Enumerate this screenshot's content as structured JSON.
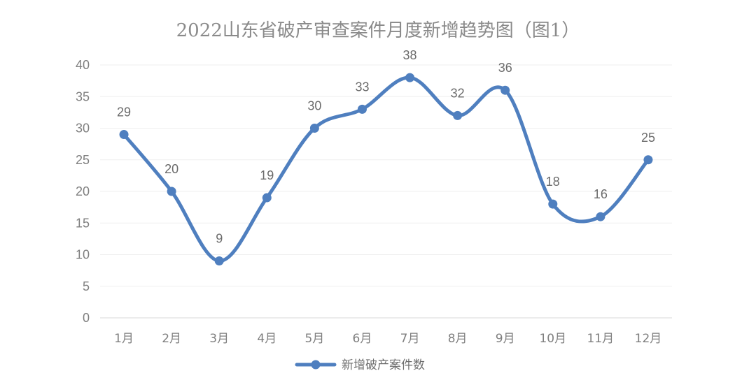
{
  "chart_data": {
    "type": "line",
    "title": "2022山东省破产审查案件月度新增趋势图（图1）",
    "categories": [
      "1月",
      "2月",
      "3月",
      "4月",
      "5月",
      "6月",
      "7月",
      "8月",
      "9月",
      "10月",
      "11月",
      "12月"
    ],
    "series": [
      {
        "name": "新增破产案件数",
        "values": [
          29,
          20,
          9,
          19,
          30,
          33,
          38,
          32,
          36,
          18,
          16,
          25
        ],
        "color": "#4f7fbf"
      }
    ],
    "ylim": [
      0,
      40
    ],
    "yticks": [
      0,
      5,
      10,
      15,
      20,
      25,
      30,
      35,
      40
    ],
    "grid": true,
    "smooth": true,
    "data_labels": true,
    "legend_position": "bottom"
  }
}
